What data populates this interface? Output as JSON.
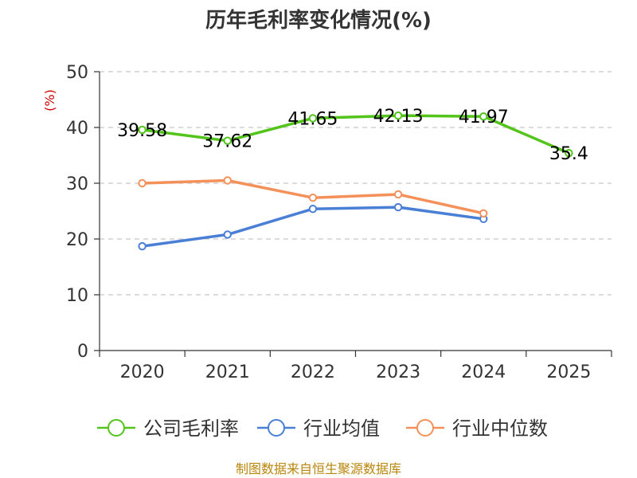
{
  "chart_data": {
    "type": "line",
    "title": "历年毛利率变化情况(%)",
    "ylabel": "(%)",
    "xlabel": "",
    "categories": [
      "2020",
      "2021",
      "2022",
      "2023",
      "2024",
      "2025"
    ],
    "ylim": [
      0,
      50
    ],
    "yticks": [
      0,
      10,
      20,
      30,
      40,
      50
    ],
    "grid": true,
    "legend_position": "bottom",
    "series": [
      {
        "name": "公司毛利率",
        "color": "#52c41a",
        "values": [
          39.58,
          37.62,
          41.65,
          42.13,
          41.97,
          35.4
        ],
        "labels": [
          "39.58",
          "37.62",
          "41.65",
          "42.13",
          "41.97",
          "35.4"
        ]
      },
      {
        "name": "行业均值",
        "color": "#4a7fd6",
        "values": [
          18.7,
          20.8,
          25.4,
          25.7,
          23.6,
          null
        ]
      },
      {
        "name": "行业中位数",
        "color": "#f4905a",
        "values": [
          30.0,
          30.5,
          27.4,
          28.0,
          24.6,
          null
        ]
      }
    ]
  },
  "source": "制图数据来自恒生聚源数据库"
}
